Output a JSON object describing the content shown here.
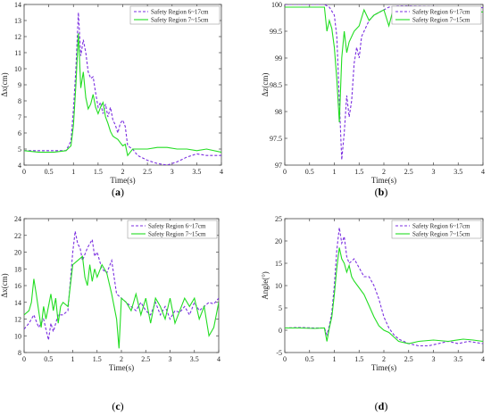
{
  "colors": {
    "series_a": "#7b2fe0",
    "series_b": "#22dd22",
    "axis": "#444444"
  },
  "chart_data": [
    {
      "panel_label": "a",
      "type": "line",
      "xlabel": "Time(s)",
      "ylabel": "Δx(cm)",
      "xlim": [
        0,
        4
      ],
      "ylim": [
        4,
        14
      ],
      "xticks": [
        0,
        0.5,
        1,
        1.5,
        2,
        2.5,
        3,
        3.5,
        4
      ],
      "yticks": [
        4,
        5,
        6,
        7,
        8,
        9,
        10,
        11,
        12,
        13,
        14
      ],
      "legend": "top-right",
      "series": [
        {
          "name": "Safety Region 6~17cm",
          "style": "dashed",
          "x": [
            0,
            0.3,
            0.6,
            0.85,
            0.95,
            1.0,
            1.05,
            1.1,
            1.15,
            1.2,
            1.25,
            1.3,
            1.35,
            1.4,
            1.45,
            1.5,
            1.55,
            1.6,
            1.65,
            1.7,
            1.75,
            1.8,
            1.85,
            1.9,
            1.95,
            2.0,
            2.05,
            2.1,
            2.2,
            2.3,
            2.5,
            2.7,
            2.9,
            3.1,
            3.3,
            3.5,
            3.7,
            4.0
          ],
          "y": [
            4.9,
            4.9,
            4.9,
            4.9,
            5.5,
            7.5,
            10.0,
            13.5,
            10.8,
            11.8,
            11.0,
            9.8,
            9.4,
            9.5,
            8.5,
            7.6,
            7.9,
            7.2,
            7.8,
            7.0,
            7.6,
            6.8,
            6.5,
            6.0,
            6.6,
            6.8,
            6.4,
            5.2,
            5.0,
            4.6,
            4.3,
            4.1,
            4.0,
            4.2,
            4.5,
            4.7,
            4.6,
            4.6
          ]
        },
        {
          "name": "Safety Region 7~15cm",
          "style": "solid",
          "x": [
            0,
            0.3,
            0.6,
            0.85,
            0.95,
            1.0,
            1.05,
            1.1,
            1.15,
            1.2,
            1.25,
            1.3,
            1.35,
            1.4,
            1.45,
            1.5,
            1.55,
            1.6,
            1.65,
            1.7,
            1.75,
            1.8,
            1.85,
            1.9,
            1.95,
            2.0,
            2.05,
            2.1,
            2.2,
            2.3,
            2.5,
            2.7,
            2.9,
            3.1,
            3.3,
            3.5,
            3.7,
            4.0
          ],
          "y": [
            4.9,
            4.8,
            4.8,
            4.9,
            5.2,
            6.5,
            9.0,
            12.2,
            8.8,
            9.8,
            8.2,
            7.5,
            7.8,
            8.4,
            7.6,
            7.2,
            7.6,
            7.9,
            7.0,
            6.6,
            6.1,
            5.8,
            5.7,
            5.6,
            5.4,
            5.2,
            5.3,
            4.6,
            5.0,
            5.0,
            5.0,
            5.1,
            5.1,
            5.0,
            5.0,
            4.9,
            5.0,
            4.8
          ]
        }
      ]
    },
    {
      "panel_label": "b",
      "type": "line",
      "xlabel": "Time(s)",
      "ylabel": "Δz(cm)",
      "xlim": [
        0,
        4
      ],
      "ylim": [
        97,
        100
      ],
      "xticks": [
        0,
        0.5,
        1,
        1.5,
        2,
        2.5,
        3,
        3.5,
        4
      ],
      "yticks": [
        97,
        97.5,
        98,
        98.5,
        99,
        99.5,
        100
      ],
      "legend": "top-right",
      "series": [
        {
          "name": "Safety Region 6~17cm",
          "style": "dashed",
          "x": [
            0,
            0.5,
            0.8,
            0.9,
            1.0,
            1.05,
            1.1,
            1.15,
            1.2,
            1.25,
            1.3,
            1.35,
            1.4,
            1.45,
            1.5,
            1.55,
            1.6,
            1.7,
            1.8,
            1.9,
            2.0,
            2.1,
            2.2,
            2.3,
            2.5,
            3.0,
            3.5,
            4.0
          ],
          "y": [
            100.0,
            100.0,
            100.0,
            99.95,
            99.8,
            99.4,
            98.2,
            97.1,
            97.6,
            98.3,
            97.9,
            98.2,
            98.9,
            99.2,
            99.0,
            99.4,
            99.5,
            99.7,
            99.8,
            99.85,
            99.9,
            99.95,
            99.96,
            99.97,
            99.97,
            99.96,
            99.95,
            99.94
          ]
        },
        {
          "name": "Safety Region 7~15cm",
          "style": "solid",
          "x": [
            0,
            0.5,
            0.8,
            0.85,
            0.9,
            0.95,
            1.0,
            1.05,
            1.1,
            1.15,
            1.2,
            1.25,
            1.3,
            1.35,
            1.4,
            1.5,
            1.6,
            1.7,
            1.8,
            1.9,
            2.0,
            2.1,
            2.2,
            2.25,
            2.3,
            2.5,
            3.0,
            3.5,
            4.0
          ],
          "y": [
            99.95,
            99.95,
            99.95,
            99.5,
            99.7,
            99.55,
            99.2,
            98.6,
            97.8,
            99.0,
            99.5,
            99.1,
            99.3,
            99.4,
            99.5,
            99.6,
            99.9,
            99.7,
            99.8,
            99.85,
            99.9,
            99.6,
            99.95,
            99.9,
            99.85,
            99.87,
            99.86,
            99.86,
            99.86
          ]
        }
      ]
    },
    {
      "panel_label": "c",
      "type": "line",
      "xlabel": "Time(s)",
      "ylabel": "Δx(cm)",
      "xlim": [
        0,
        4
      ],
      "ylim": [
        8,
        24
      ],
      "xticks": [
        0,
        0.5,
        1,
        1.5,
        2,
        2.5,
        3,
        3.5,
        4
      ],
      "yticks": [
        8,
        10,
        12,
        14,
        16,
        18,
        20,
        22,
        24
      ],
      "legend": "top-right",
      "series": [
        {
          "name": "Safety Region 6~17cm",
          "style": "dashed",
          "x": [
            0,
            0.1,
            0.2,
            0.3,
            0.4,
            0.5,
            0.55,
            0.6,
            0.7,
            0.8,
            0.9,
            1.0,
            1.05,
            1.1,
            1.15,
            1.2,
            1.3,
            1.4,
            1.45,
            1.5,
            1.6,
            1.7,
            1.8,
            1.9,
            2.0,
            2.1,
            2.2,
            2.3,
            2.4,
            2.5,
            2.6,
            2.7,
            2.8,
            2.9,
            3.0,
            3.1,
            3.2,
            3.3,
            3.4,
            3.5,
            3.6,
            3.7,
            3.8,
            3.9,
            4.0
          ],
          "y": [
            10.8,
            11.5,
            12.5,
            11.0,
            12.0,
            9.5,
            11.5,
            10.5,
            12.5,
            12.5,
            13.0,
            20.0,
            22.5,
            21.0,
            20.5,
            19.0,
            20.5,
            21.5,
            19.5,
            20.0,
            18.0,
            17.5,
            19.0,
            15.0,
            14.5,
            14.0,
            13.5,
            13.0,
            14.0,
            13.0,
            12.5,
            14.0,
            12.5,
            13.5,
            12.0,
            13.0,
            12.8,
            13.5,
            12.5,
            14.0,
            13.0,
            13.5,
            14.0,
            13.8,
            14.5
          ]
        },
        {
          "name": "Safety Region 7~15cm",
          "style": "solid",
          "x": [
            0,
            0.1,
            0.15,
            0.2,
            0.25,
            0.3,
            0.35,
            0.4,
            0.45,
            0.5,
            0.55,
            0.6,
            0.65,
            0.7,
            0.75,
            0.8,
            0.9,
            1.0,
            1.1,
            1.2,
            1.25,
            1.3,
            1.35,
            1.4,
            1.45,
            1.5,
            1.6,
            1.7,
            1.8,
            1.9,
            1.95,
            2.0,
            2.1,
            2.2,
            2.3,
            2.4,
            2.5,
            2.6,
            2.7,
            2.8,
            2.9,
            3.0,
            3.1,
            3.2,
            3.3,
            3.4,
            3.5,
            3.6,
            3.7,
            3.8,
            3.9,
            4.0
          ],
          "y": [
            12.5,
            13.0,
            14.0,
            16.8,
            15.0,
            13.0,
            11.0,
            13.5,
            12.0,
            13.5,
            15.0,
            13.0,
            14.5,
            11.5,
            13.5,
            14.0,
            13.5,
            18.5,
            19.0,
            19.5,
            17.0,
            16.0,
            18.5,
            16.5,
            18.0,
            17.0,
            18.5,
            17.5,
            15.0,
            12.0,
            8.5,
            14.5,
            14.0,
            13.0,
            15.0,
            12.5,
            14.5,
            11.5,
            14.5,
            13.5,
            12.0,
            14.5,
            11.5,
            13.0,
            14.5,
            13.5,
            14.5,
            12.0,
            13.5,
            10.0,
            11.0,
            14.0
          ]
        }
      ]
    },
    {
      "panel_label": "d",
      "type": "line",
      "xlabel": "Time(s)",
      "ylabel": "Angle(°)",
      "xlim": [
        0,
        4
      ],
      "ylim": [
        -5,
        25
      ],
      "xticks": [
        0,
        0.5,
        1,
        1.5,
        2,
        2.5,
        3,
        3.5,
        4
      ],
      "yticks": [
        -5,
        0,
        5,
        10,
        15,
        20,
        25
      ],
      "legend": "top-right",
      "series": [
        {
          "name": "Safety Region 6~17cm",
          "style": "dashed",
          "x": [
            0,
            0.3,
            0.6,
            0.8,
            0.85,
            0.9,
            0.95,
            1.0,
            1.05,
            1.1,
            1.15,
            1.2,
            1.25,
            1.3,
            1.4,
            1.5,
            1.6,
            1.7,
            1.8,
            1.9,
            2.0,
            2.1,
            2.2,
            2.3,
            2.5,
            2.7,
            2.9,
            3.1,
            3.3,
            3.5,
            3.7,
            4.0
          ],
          "y": [
            0.5,
            0.6,
            0.5,
            0.5,
            -1.0,
            1.0,
            4.0,
            10.0,
            18.0,
            23.0,
            19.5,
            21.0,
            16.5,
            15.0,
            16.0,
            14.0,
            12.0,
            12.0,
            10.0,
            7.0,
            3.0,
            0.5,
            -1.0,
            -2.0,
            -3.0,
            -3.5,
            -3.5,
            -3.0,
            -2.5,
            -3.0,
            -2.5,
            -3.0
          ]
        },
        {
          "name": "Safety Region 7~15cm",
          "style": "solid",
          "x": [
            0,
            0.3,
            0.6,
            0.8,
            0.85,
            0.9,
            0.95,
            1.0,
            1.05,
            1.1,
            1.15,
            1.2,
            1.25,
            1.3,
            1.35,
            1.4,
            1.5,
            1.6,
            1.7,
            1.8,
            1.9,
            2.0,
            2.1,
            2.2,
            2.3,
            2.5,
            2.7,
            3.0,
            3.3,
            3.6,
            3.8,
            4.0
          ],
          "y": [
            0.5,
            0.5,
            0.4,
            0.5,
            -2.5,
            0.5,
            3.0,
            8.0,
            14.0,
            18.5,
            16.0,
            15.0,
            13.0,
            14.5,
            12.0,
            11.0,
            9.5,
            8.0,
            5.5,
            3.0,
            1.0,
            0.0,
            -0.5,
            -1.5,
            -2.5,
            -3.0,
            -2.5,
            -2.2,
            -2.5,
            -2.0,
            -2.2,
            -2.5
          ]
        }
      ]
    }
  ]
}
